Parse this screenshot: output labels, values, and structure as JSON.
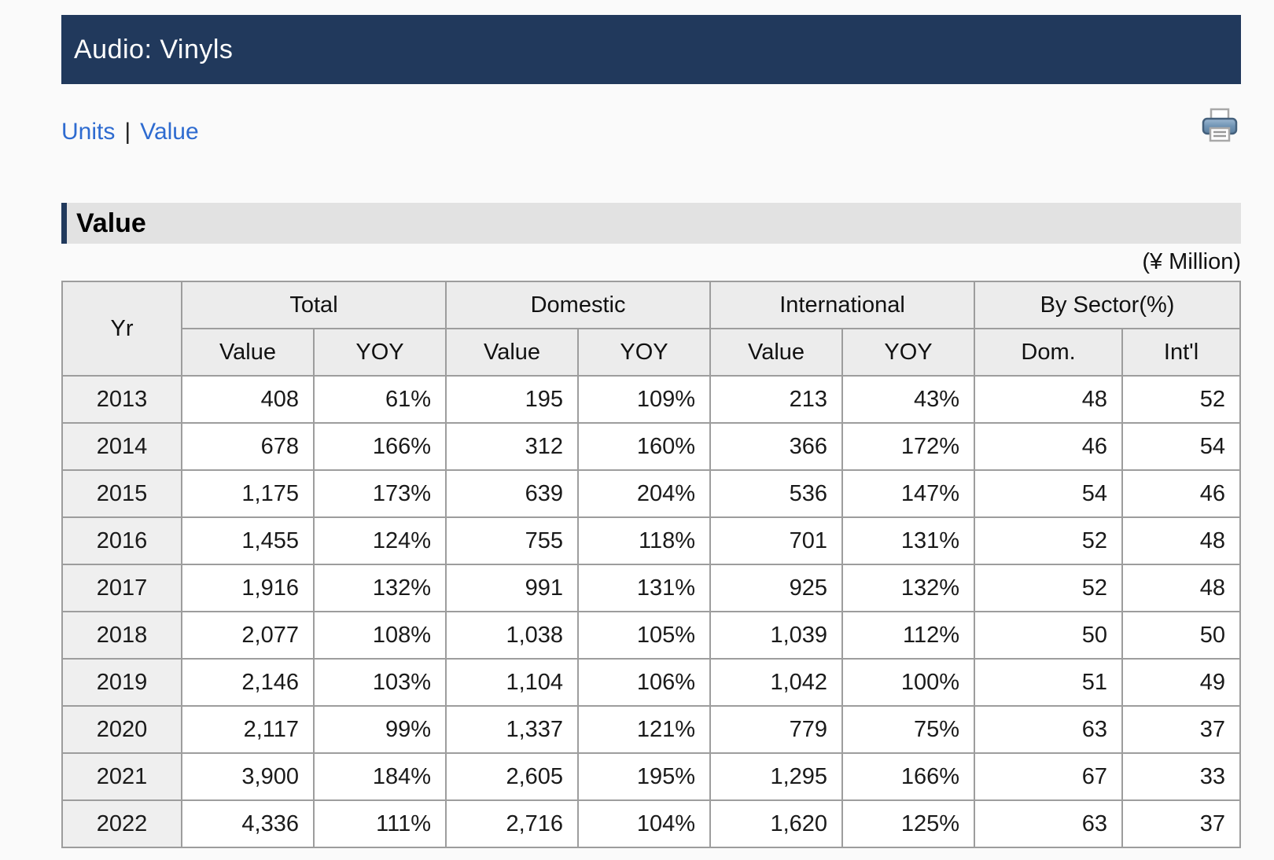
{
  "header": {
    "title": "Audio: Vinyls"
  },
  "nav": {
    "units_label": "Units",
    "separator": "|",
    "value_label": "Value",
    "print_icon": "printer"
  },
  "section": {
    "title": "Value",
    "unit_note": "(¥ Million)"
  },
  "colors": {
    "navy_bar": "#21395c",
    "link_blue": "#2e6bd0",
    "header_cell_bg": "#ececec",
    "year_cell_bg": "#efefef",
    "border_gray": "#9d9d9d"
  },
  "table": {
    "yr_header": "Yr",
    "col_groups": [
      "Total",
      "Domestic",
      "International",
      "By Sector(%)"
    ],
    "sub_headers": [
      "Value",
      "YOY",
      "Value",
      "YOY",
      "Value",
      "YOY",
      "Dom.",
      "Int'l"
    ],
    "rows": [
      [
        "2013",
        "408",
        "61%",
        "195",
        "109%",
        "213",
        "43%",
        "48",
        "52"
      ],
      [
        "2014",
        "678",
        "166%",
        "312",
        "160%",
        "366",
        "172%",
        "46",
        "54"
      ],
      [
        "2015",
        "1,175",
        "173%",
        "639",
        "204%",
        "536",
        "147%",
        "54",
        "46"
      ],
      [
        "2016",
        "1,455",
        "124%",
        "755",
        "118%",
        "701",
        "131%",
        "52",
        "48"
      ],
      [
        "2017",
        "1,916",
        "132%",
        "991",
        "131%",
        "925",
        "132%",
        "52",
        "48"
      ],
      [
        "2018",
        "2,077",
        "108%",
        "1,038",
        "105%",
        "1,039",
        "112%",
        "50",
        "50"
      ],
      [
        "2019",
        "2,146",
        "103%",
        "1,104",
        "106%",
        "1,042",
        "100%",
        "51",
        "49"
      ],
      [
        "2020",
        "2,117",
        "99%",
        "1,337",
        "121%",
        "779",
        "75%",
        "63",
        "37"
      ],
      [
        "2021",
        "3,900",
        "184%",
        "2,605",
        "195%",
        "1,295",
        "166%",
        "67",
        "33"
      ],
      [
        "2022",
        "4,336",
        "111%",
        "2,716",
        "104%",
        "1,620",
        "125%",
        "63",
        "37"
      ]
    ]
  }
}
